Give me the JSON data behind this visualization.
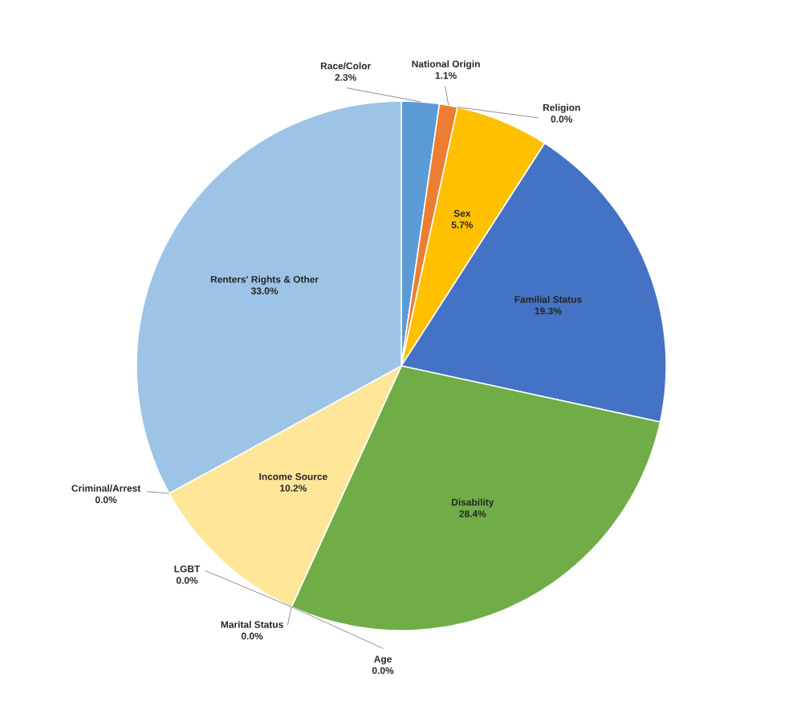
{
  "chart_data": {
    "type": "pie",
    "categories": [
      "Race/Color",
      "National Origin",
      "Religion",
      "Sex",
      "Familial Status",
      "Disability",
      "Age",
      "Marital Status",
      "LGBT",
      "Income Source",
      "Criminal/Arrest",
      "Renters' Rights & Other"
    ],
    "values": [
      2.3,
      1.1,
      0.0,
      5.7,
      19.3,
      28.4,
      0.0,
      0.0,
      0.0,
      10.2,
      0.0,
      33.0
    ],
    "value_labels": [
      "2.3%",
      "1.1%",
      "0.0%",
      "5.7%",
      "19.3%",
      "28.4%",
      "0.0%",
      "0.0%",
      "0.0%",
      "10.2%",
      "0.0%",
      "33.0%"
    ],
    "colors": [
      "#5b9bd5",
      "#ed7d31",
      "#a5a5a5",
      "#ffc000",
      "#4472c4",
      "#70ad47",
      "#264478",
      "#9e480e",
      "#636363",
      "#ffe699",
      "#43682b",
      "#9dc3e6"
    ]
  }
}
